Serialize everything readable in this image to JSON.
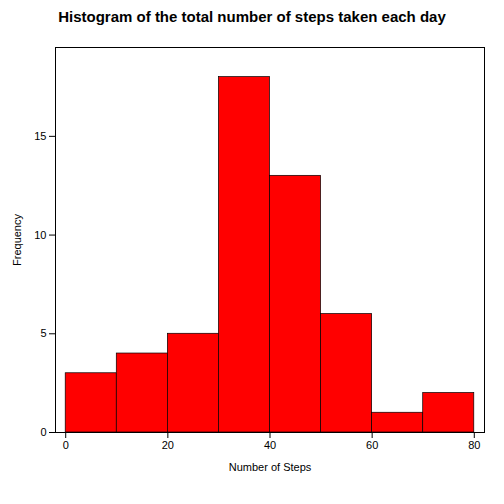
{
  "chart_data": {
    "type": "histogram",
    "title": "Histogram of the total number of steps taken each day",
    "xlabel": "Number of Steps",
    "ylabel": "Frequency",
    "bins": [
      0,
      10,
      20,
      30,
      40,
      50,
      60,
      70,
      80
    ],
    "values": [
      3,
      4,
      5,
      18,
      13,
      6,
      1,
      2
    ],
    "color": "#FF0000",
    "xlim": [
      -2,
      82
    ],
    "ylim": [
      0,
      19.5
    ],
    "xticks": [
      0,
      20,
      40,
      60,
      80
    ],
    "yticks": [
      0,
      5,
      10,
      15
    ],
    "grid": false
  }
}
